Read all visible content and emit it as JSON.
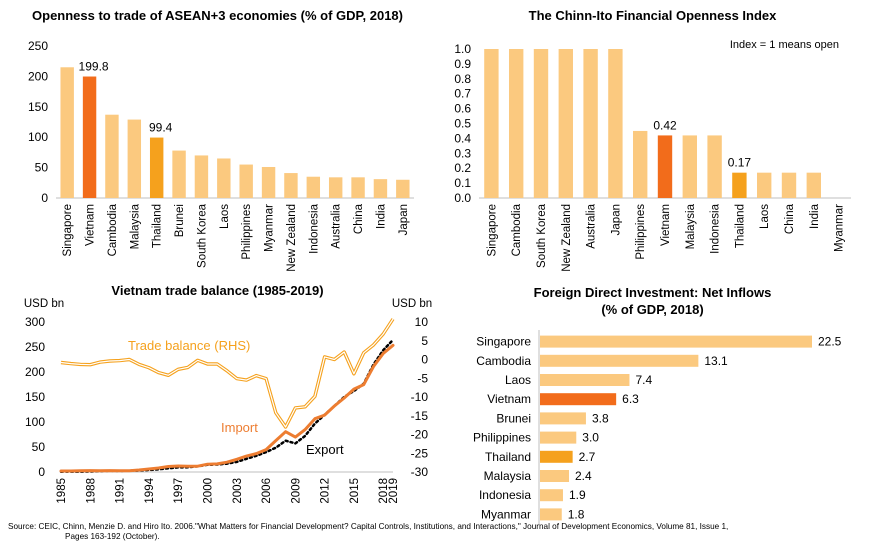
{
  "chart_data": [
    {
      "type": "bar",
      "title": "Openness to trade of ASEAN+3 economies (% of GDP, 2018)",
      "categories": [
        "Singapore",
        "Vietnam",
        "Cambodia",
        "Malaysia",
        "Thailand",
        "Brunei",
        "South Korea",
        "Laos",
        "Philippines",
        "Myanmar",
        "New Zealand",
        "Indonesia",
        "Australia",
        "China",
        "India",
        "Japan"
      ],
      "values": [
        215,
        199.8,
        137,
        129,
        99.4,
        78,
        70,
        65,
        55,
        51,
        41,
        35,
        34,
        34,
        31,
        30
      ],
      "highlight": {
        "Vietnam": "#f26c1b",
        "Thailand": "#f5a11d"
      },
      "data_labels": {
        "Vietnam": "199.8",
        "Thailand": "99.4"
      },
      "ylim": [
        0,
        250
      ],
      "yticks": [
        "0",
        "50",
        "100",
        "150",
        "200",
        "250"
      ],
      "grid": false
    },
    {
      "type": "bar",
      "title": "The Chinn-Ito Financial Openness Index",
      "annotation": "Index = 1 means open",
      "categories": [
        "Singapore",
        "Cambodia",
        "South Korea",
        "New Zealand",
        "Australia",
        "Japan",
        "Philippines",
        "Vietnam",
        "Malaysia",
        "Indonesia",
        "Thailand",
        "Laos",
        "China",
        "India",
        "Myanmar"
      ],
      "values": [
        1.0,
        1.0,
        1.0,
        1.0,
        1.0,
        1.0,
        0.45,
        0.42,
        0.42,
        0.42,
        0.17,
        0.17,
        0.17,
        0.17,
        0.0
      ],
      "highlight": {
        "Vietnam": "#f26c1b",
        "Thailand": "#f5a11d"
      },
      "data_labels": {
        "Vietnam": "0.42",
        "Thailand": "0.17"
      },
      "ylim": [
        0,
        1.0
      ],
      "yticks": [
        "0.0",
        "0.1",
        "0.2",
        "0.3",
        "0.4",
        "0.5",
        "0.6",
        "0.7",
        "0.8",
        "0.9",
        "1.0"
      ],
      "grid": false
    },
    {
      "type": "line",
      "title": "Vietnam trade balance (1985-2019)",
      "ylabel_left": "USD bn",
      "ylabel_right": "USD bn",
      "ylim_left": [
        0,
        300
      ],
      "yticks_left": [
        "0",
        "50",
        "100",
        "150",
        "200",
        "250",
        "300"
      ],
      "ylim_right": [
        -30,
        10
      ],
      "yticks_right": [
        "-30",
        "-25",
        "-20",
        "-15",
        "-10",
        "-5",
        "0",
        "5",
        "10"
      ],
      "x_tick_labels": [
        "1985",
        "1988",
        "1991",
        "1994",
        "1997",
        "2000",
        "2003",
        "2006",
        "2009",
        "2012",
        "2015",
        "2018",
        "2019"
      ],
      "x": [
        1985,
        1986,
        1987,
        1988,
        1989,
        1990,
        1991,
        1992,
        1993,
        1994,
        1995,
        1996,
        1997,
        1998,
        1999,
        2000,
        2001,
        2002,
        2003,
        2004,
        2005,
        2006,
        2007,
        2008,
        2009,
        2010,
        2011,
        2012,
        2013,
        2014,
        2015,
        2016,
        2017,
        2018,
        2019
      ],
      "series": [
        {
          "name": "Import",
          "axis": "left",
          "color": "#ed7d31",
          "values": [
            2,
            2,
            2.5,
            2.8,
            2.6,
            2.8,
            2.3,
            2.6,
            4,
            6,
            8,
            11,
            12,
            11.5,
            11.7,
            15.6,
            16.2,
            19.7,
            25.3,
            31.9,
            36.8,
            44.9,
            62.8,
            80.7,
            69.9,
            84.8,
            106.7,
            113.8,
            132,
            148,
            165.8,
            174.8,
            211.1,
            236.9,
            253.4
          ]
        },
        {
          "name": "Export",
          "axis": "left",
          "color": "#000000",
          "values": [
            0.7,
            0.8,
            0.9,
            1,
            1.9,
            2.4,
            2.1,
            2.6,
            3,
            4,
            5.4,
            7.3,
            9.2,
            9.4,
            11.5,
            14.5,
            15,
            16.7,
            20.1,
            26.5,
            32.4,
            39.8,
            48.6,
            62.7,
            57.1,
            72.2,
            96.9,
            114.5,
            132,
            150.2,
            162,
            176.6,
            215.1,
            243.7,
            264.2
          ]
        },
        {
          "name": "Trade balance (RHS)",
          "axis": "right",
          "color": "#f5a11d",
          "values": [
            -0.8,
            -1.1,
            -1.3,
            -1.4,
            -0.7,
            -0.4,
            -0.3,
            0,
            -1.3,
            -2.2,
            -3.5,
            -4.2,
            -2.6,
            -2.1,
            -0.2,
            -1.2,
            -1.2,
            -3,
            -5.1,
            -5.5,
            -4.3,
            -5.1,
            -14.2,
            -18,
            -12.9,
            -12.6,
            -9.8,
            0.7,
            0,
            2,
            -3.8,
            1.8,
            3.9,
            6.8,
            10.8
          ]
        }
      ],
      "series_labels": {
        "Trade balance (RHS)": "Trade balance (RHS)",
        "Import": "Import",
        "Export": "Export"
      }
    },
    {
      "type": "bar",
      "orientation": "horizontal",
      "title": "Foreign Direct Investment: Net Inflows (% of GDP, 2018)",
      "title_line1": "Foreign Direct Investment: Net Inflows",
      "title_line2": "(% of GDP, 2018)",
      "categories": [
        "Singapore",
        "Cambodia",
        "Laos",
        "Vietnam",
        "Brunei",
        "Philippines",
        "Thailand",
        "Malaysia",
        "Indonesia",
        "Myanmar"
      ],
      "values": [
        22.5,
        13.1,
        7.4,
        6.3,
        3.8,
        3.0,
        2.7,
        2.4,
        1.9,
        1.8
      ],
      "data_labels": [
        "22.5",
        "13.1",
        "7.4",
        "6.3",
        "3.8",
        "3.0",
        "2.7",
        "2.4",
        "1.9",
        "1.8"
      ],
      "highlight": {
        "Vietnam": "#f26c1b",
        "Thailand": "#f5a11d"
      }
    }
  ],
  "colors": {
    "bar": "#fbc97f",
    "vietnam": "#f26c1b",
    "thailand": "#f5a11d",
    "axis": "#bfbfbf"
  },
  "source_line1": "Source: CEIC, Chinn, Menzie D. and Hiro Ito. 2006.\"What Matters for Financial Development? Capital Controls, Institutions, and Interactions,\" Journal of Development Economics, Volume 81, Issue 1,",
  "source_line2": "Pages 163-192 (October)."
}
